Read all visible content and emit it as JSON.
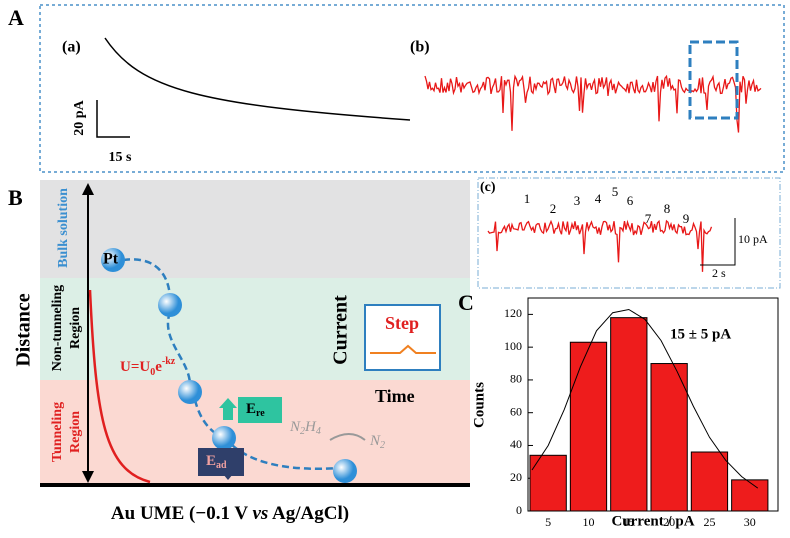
{
  "panel_a": {
    "letter": "A",
    "label_a": "(a)",
    "label_b": "(b)",
    "scale_y": "20 pA",
    "scale_x": "15 s"
  },
  "panel_b": {
    "letter": "B",
    "y_label": "Distance",
    "bulk": "Bulk solution",
    "non_tunneling": [
      "Non-tunneling",
      "Region"
    ],
    "tunneling": [
      "Tunneling",
      "Region"
    ],
    "pt": "Pt",
    "potential": {
      "main": "U=U",
      "sub": "0",
      "e": "e",
      "sup": "-kz"
    },
    "current": "Current",
    "step": "Step",
    "time": "Time",
    "e_re": {
      "main": "E",
      "sub": "re"
    },
    "e_ad": {
      "main": "E",
      "sub": "ad"
    },
    "n2h4": {
      "n": "N",
      "s1": "2",
      "h": "H",
      "s2": "4"
    },
    "n2": {
      "n": "N",
      "s": "2"
    },
    "x_label": {
      "pre": "Au UME (−0.1 V ",
      "vs": "vs",
      "post": " Ag/AgCl)"
    }
  },
  "panel_c": {
    "label": "(c)",
    "peaks": [
      "1",
      "2",
      "3",
      "4",
      "5",
      "6",
      "7",
      "8",
      "9"
    ],
    "scale_y": "10 pA",
    "scale_x": "2 s"
  },
  "chart_data": {
    "type": "bar",
    "letter": "C",
    "annotation": "15 ± 5 pA",
    "x_label": "Current / pA",
    "y_label": "Counts",
    "x": [
      5,
      10,
      15,
      20,
      25,
      30
    ],
    "values": [
      34,
      103,
      118,
      90,
      36,
      19
    ],
    "color": "#ee1c1c",
    "fit": {
      "x": [
        3,
        5,
        7,
        9,
        11,
        13,
        15,
        17,
        19,
        21,
        23,
        25,
        27,
        29,
        31
      ],
      "values": [
        25,
        40,
        62,
        88,
        110,
        121,
        123,
        117,
        104,
        85,
        64,
        45,
        31,
        21,
        14
      ]
    },
    "xlim": [
      2.5,
      33.5
    ],
    "ylim": [
      0,
      130
    ],
    "xticks": [
      5,
      10,
      15,
      20,
      25,
      30
    ],
    "yticks": [
      0,
      20,
      40,
      60,
      80,
      100,
      120
    ]
  }
}
